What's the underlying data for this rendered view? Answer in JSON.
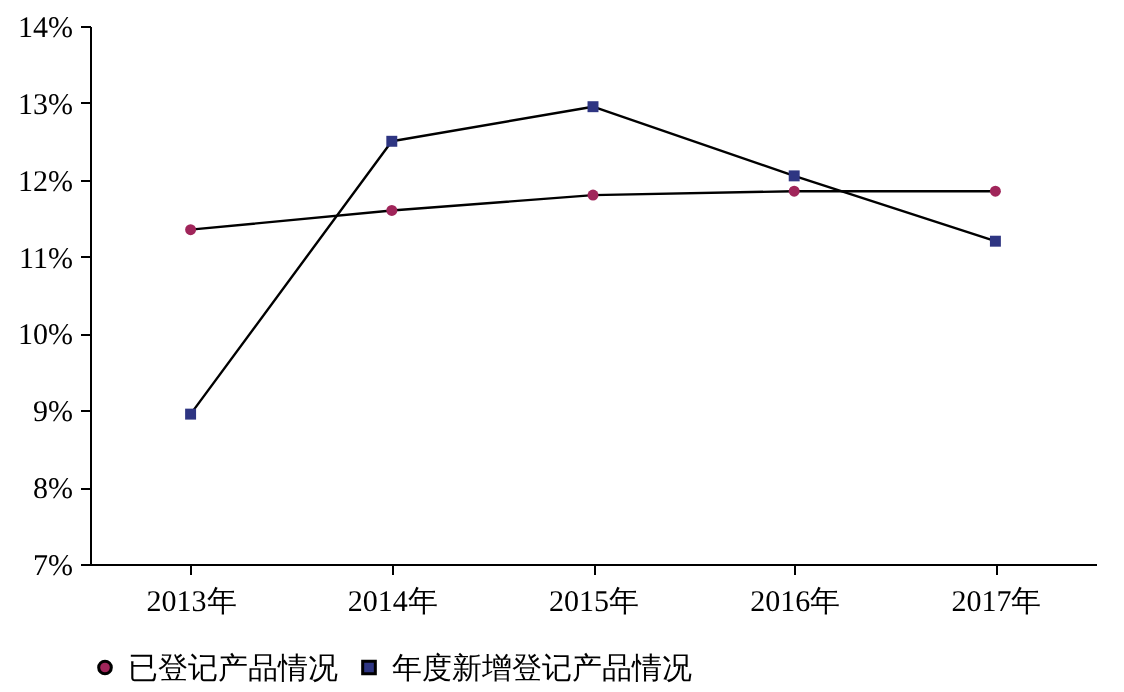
{
  "chart_data": {
    "type": "line",
    "categories": [
      "2013年",
      "2014年",
      "2015年",
      "2016年",
      "2017年"
    ],
    "series": [
      {
        "name": "已登记产品情况",
        "color": "#a0255a",
        "marker": "circle",
        "values": [
          11.35,
          11.6,
          11.8,
          11.85,
          11.85
        ]
      },
      {
        "name": "年度新增登记产品情况",
        "color": "#2e3582",
        "marker": "square",
        "values": [
          8.95,
          12.5,
          12.95,
          12.05,
          11.2
        ]
      }
    ],
    "ylim": [
      7,
      14
    ],
    "yticks": [
      {
        "value": 7,
        "label": "7%"
      },
      {
        "value": 8,
        "label": "8%"
      },
      {
        "value": 9,
        "label": "9%"
      },
      {
        "value": 10,
        "label": "10%"
      },
      {
        "value": 11,
        "label": "11%"
      },
      {
        "value": 12,
        "label": "12%"
      },
      {
        "value": 13,
        "label": "13%"
      },
      {
        "value": 14,
        "label": "14%"
      }
    ],
    "legend": "bottom",
    "grid": false,
    "line_style": "solid"
  }
}
